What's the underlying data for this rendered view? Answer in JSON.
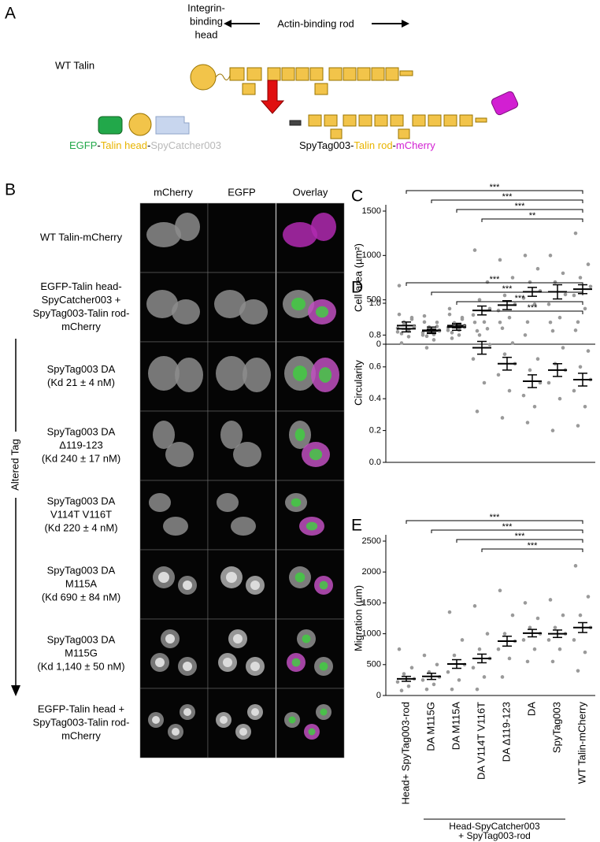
{
  "panel_labels": [
    "A",
    "B",
    "C",
    "D",
    "E"
  ],
  "diagram": {
    "head_label": [
      "Integrin-",
      "binding",
      "head"
    ],
    "rod_label": "Actin-binding rod",
    "wt_label": "WT Talin",
    "product_1": [
      {
        "text": "EGFP",
        "color": "#22a84a"
      },
      {
        "text": "-",
        "color": "#000000"
      },
      {
        "text": "Talin head",
        "color": "#e8b400"
      },
      {
        "text": "-",
        "color": "#000000"
      },
      {
        "text": "SpyCatcher003",
        "color": "#b8b8b8"
      }
    ],
    "product_2": [
      {
        "text": "SpyTag003",
        "color": "#000000"
      },
      {
        "text": "-",
        "color": "#000000"
      },
      {
        "text": "Talin rod",
        "color": "#e8b400"
      },
      {
        "text": "-",
        "color": "#000000"
      },
      {
        "text": "mCherry",
        "color": "#d21fd2"
      }
    ]
  },
  "microscopy": {
    "columns": [
      "mCherry",
      "EGFP",
      "Overlay"
    ],
    "side_label": "Altered Tag",
    "rows": [
      [
        "WT Talin-mCherry"
      ],
      [
        "EGFP-Talin head-",
        "SpyCatcher003 +",
        "SpyTag003-Talin rod-",
        "mCherry"
      ],
      [
        "SpyTag003 DA",
        "(Kd 21 ± 4 nM)"
      ],
      [
        "SpyTag003 DA",
        "Δ119-123",
        "(Kd 240 ± 17 nM)"
      ],
      [
        "SpyTag003 DA",
        "V114T V116T",
        "(Kd 220 ± 4 nM)"
      ],
      [
        "SpyTag003 DA",
        "M115A",
        "(Kd 690 ± 84 nM)"
      ],
      [
        "SpyTag003 DA",
        "M115G",
        "(Kd 1,140 ± 50 nM)"
      ],
      [
        "EGFP-Talin head +",
        "SpyTag003-Talin rod-",
        "mCherry"
      ]
    ]
  },
  "chart_data": [
    {
      "type": "dot",
      "ylabel": "Cell area (µm²)",
      "ylim": [
        0,
        1500
      ],
      "yticks": [
        0,
        500,
        1000,
        1500
      ],
      "color": "#000000",
      "point_color": "#9a9a9a",
      "significance": [
        "***",
        "***",
        "***",
        "**"
      ],
      "mean": [
        210,
        150,
        210,
        380,
        440,
        590,
        590,
        620
      ],
      "sem": [
        40,
        20,
        25,
        50,
        50,
        50,
        80,
        50
      ],
      "points": [
        [
          660,
          300,
          250,
          200,
          180,
          150,
          120
        ],
        [
          250,
          200,
          170,
          150,
          130,
          110,
          90
        ],
        [
          400,
          300,
          240,
          210,
          190,
          160,
          130
        ],
        [
          1060,
          700,
          500,
          400,
          330,
          250,
          150
        ],
        [
          950,
          750,
          550,
          450,
          380,
          300,
          180
        ],
        [
          1000,
          850,
          700,
          600,
          520,
          450,
          250
        ],
        [
          1000,
          800,
          700,
          560,
          450,
          300,
          150
        ],
        [
          1250,
          900,
          750,
          650,
          550,
          400,
          250
        ]
      ]
    },
    {
      "type": "dot",
      "ylabel": "Circularity",
      "ylim": [
        0,
        1
      ],
      "yticks": [
        {
          "value": 0,
          "label": "0.0"
        },
        0.2,
        0.4,
        0.6,
        0.8,
        {
          "value": 1,
          "label": "1.0"
        }
      ],
      "color": "#000000",
      "point_color": "#9a9a9a",
      "significance": [
        "***",
        "***",
        "***",
        "***"
      ],
      "mean": [
        0.84,
        0.83,
        0.85,
        0.72,
        0.62,
        0.51,
        0.58,
        0.52
      ],
      "sem": [
        0.02,
        0.02,
        0.02,
        0.04,
        0.04,
        0.04,
        0.04,
        0.04
      ],
      "points": [
        [
          0.93,
          0.9,
          0.87,
          0.85,
          0.82,
          0.79,
          0.75
        ],
        [
          0.92,
          0.88,
          0.85,
          0.83,
          0.8,
          0.77,
          0.72
        ],
        [
          0.93,
          0.9,
          0.87,
          0.85,
          0.83,
          0.8,
          0.78
        ],
        [
          0.88,
          0.84,
          0.8,
          0.74,
          0.65,
          0.5,
          0.32
        ],
        [
          0.88,
          0.75,
          0.68,
          0.62,
          0.55,
          0.45,
          0.28
        ],
        [
          0.8,
          0.65,
          0.58,
          0.5,
          0.42,
          0.35,
          0.25
        ],
        [
          0.88,
          0.72,
          0.62,
          0.58,
          0.5,
          0.4,
          0.2
        ],
        [
          0.83,
          0.7,
          0.6,
          0.52,
          0.45,
          0.35,
          0.23
        ]
      ]
    },
    {
      "type": "dot",
      "ylabel": "Migration (µm)",
      "ylim": [
        0,
        2500
      ],
      "yticks": [
        0,
        500,
        1000,
        1500,
        2000,
        2500
      ],
      "color": "#000000",
      "point_color": "#9a9a9a",
      "significance": [
        "***",
        "***",
        "***",
        "***"
      ],
      "categories": [
        "Head+ SpyTag003-rod",
        "DA M115G",
        "DA M115A",
        "DA V114T V116T",
        "DA Δ119-123",
        "DA",
        "SpyTag003",
        "WT Talin-mCherry"
      ],
      "group_label": [
        "Head-SpyCatcher003",
        "+ SpyTag003-rod"
      ],
      "mean": [
        270,
        310,
        510,
        600,
        880,
        1010,
        1000,
        1100
      ],
      "sem": [
        40,
        50,
        70,
        70,
        80,
        60,
        60,
        80
      ],
      "points": [
        [
          750,
          450,
          350,
          270,
          220,
          150,
          80
        ],
        [
          650,
          500,
          380,
          300,
          250,
          180,
          100
        ],
        [
          1350,
          900,
          650,
          500,
          380,
          250,
          100
        ],
        [
          1450,
          1000,
          750,
          600,
          450,
          300,
          100
        ],
        [
          1700,
          1300,
          1000,
          880,
          750,
          600,
          300
        ],
        [
          1500,
          1250,
          1100,
          1000,
          900,
          750,
          550
        ],
        [
          1550,
          1300,
          1100,
          1000,
          900,
          750,
          550
        ],
        [
          2100,
          1600,
          1300,
          1100,
          900,
          700,
          400
        ]
      ]
    }
  ]
}
